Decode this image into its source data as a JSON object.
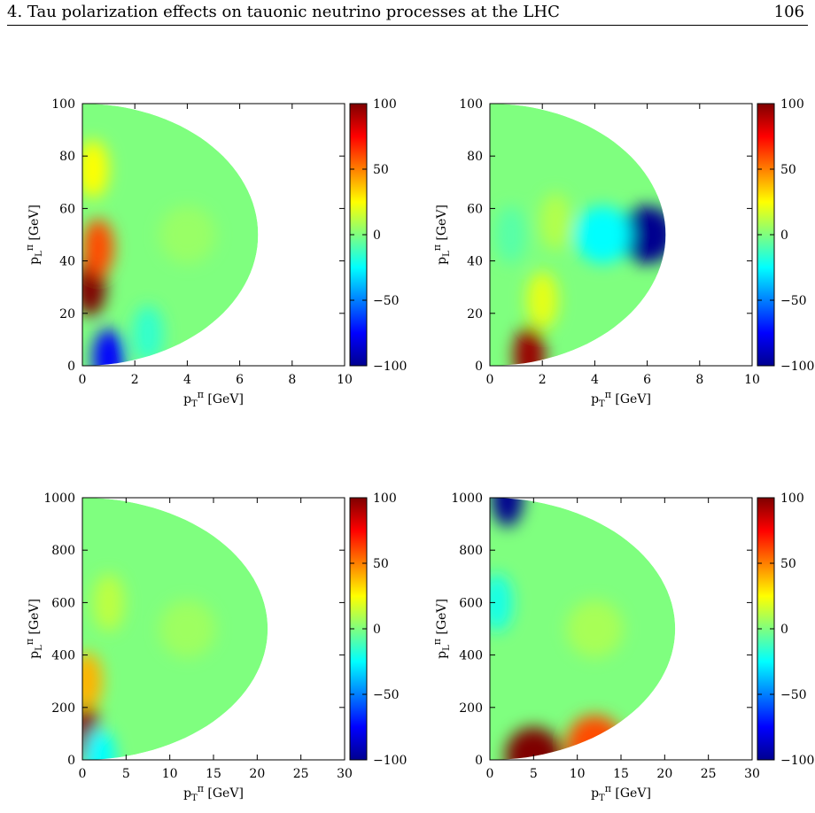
{
  "header": {
    "title": "4. Tau polarization effects on tauonic neutrino processes at the LHC",
    "page_number": "106"
  },
  "colormap": [
    "#00008f",
    "#0000ff",
    "#007fff",
    "#00ffff",
    "#7fff7f",
    "#ffff00",
    "#ff7f00",
    "#ff0000",
    "#7f0000"
  ],
  "chart_data": [
    {
      "type": "heatmap",
      "x_label_base": "p",
      "x_label_sup": "π",
      "x_label_sub": "T",
      "x_unit": "[GeV]",
      "y_label_base": "p",
      "y_label_sup": "π",
      "y_label_sub": "L",
      "y_unit": "[GeV]",
      "xlim": [
        0,
        10
      ],
      "ylim": [
        0,
        100
      ],
      "xticks": [
        0,
        2,
        4,
        6,
        8,
        10
      ],
      "yticks": [
        0,
        20,
        40,
        60,
        80,
        100
      ],
      "zlim": [
        -100,
        100
      ],
      "zticks": [
        -100,
        -50,
        0,
        50,
        100
      ],
      "colorbar_labels": [
        "100",
        "50",
        "0",
        "−50",
        "−100"
      ],
      "pT_max": 6.7,
      "regions": [
        {
          "pL": 30,
          "pT": 0.3,
          "value": 100
        },
        {
          "pL": 45,
          "pT": 0.6,
          "value": 60
        },
        {
          "pL": 75,
          "pT": 0.4,
          "value": 25
        },
        {
          "pL": 3,
          "pT": 1.0,
          "value": -75
        },
        {
          "pL": 12,
          "pT": 2.5,
          "value": -15
        },
        {
          "pL": 50,
          "pT": 4.0,
          "value": 5
        }
      ]
    },
    {
      "type": "heatmap",
      "x_label_base": "p",
      "x_label_sup": "π",
      "x_label_sub": "T",
      "x_unit": "[GeV]",
      "y_label_base": "p",
      "y_label_sup": "π",
      "y_label_sub": "L",
      "y_unit": "[GeV]",
      "xlim": [
        0,
        10
      ],
      "ylim": [
        0,
        100
      ],
      "xticks": [
        0,
        2,
        4,
        6,
        8,
        10
      ],
      "yticks": [
        0,
        20,
        40,
        60,
        80,
        100
      ],
      "zlim": [
        -100,
        100
      ],
      "zticks": [
        -100,
        -50,
        0,
        50,
        100
      ],
      "colorbar_labels": [
        "100",
        "50",
        "0",
        "−50",
        "−100"
      ],
      "pT_max": 6.7,
      "regions": [
        {
          "pL": 50,
          "pT": 6.0,
          "value": -100
        },
        {
          "pL": 50,
          "pT": 4.3,
          "value": -25
        },
        {
          "pL": 4,
          "pT": 1.5,
          "value": 95
        },
        {
          "pL": 25,
          "pT": 2.0,
          "value": 20
        },
        {
          "pL": 50,
          "pT": 0.8,
          "value": -8
        },
        {
          "pL": 55,
          "pT": 2.5,
          "value": 10
        }
      ]
    },
    {
      "type": "heatmap",
      "x_label_base": "p",
      "x_label_sup": "π",
      "x_label_sub": "T",
      "x_unit": "[GeV]",
      "y_label_base": "p",
      "y_label_sup": "π",
      "y_label_sub": "L",
      "y_unit": "[GeV]",
      "xlim": [
        0,
        30
      ],
      "ylim": [
        0,
        1000
      ],
      "xticks": [
        0,
        5,
        10,
        15,
        20,
        25,
        30
      ],
      "yticks": [
        0,
        200,
        400,
        600,
        800,
        1000
      ],
      "zlim": [
        -100,
        100
      ],
      "zticks": [
        -100,
        -50,
        0,
        50,
        100
      ],
      "colorbar_labels": [
        "100",
        "50",
        "0",
        "−50",
        "−100"
      ],
      "pT_max": 21.2,
      "regions": [
        {
          "pL": 100,
          "pT": 0.3,
          "value": 100
        },
        {
          "pL": 300,
          "pT": 0.5,
          "value": 40
        },
        {
          "pL": 10,
          "pT": 2.0,
          "value": -25
        },
        {
          "pL": 600,
          "pT": 3.0,
          "value": 12
        },
        {
          "pL": 500,
          "pT": 12.0,
          "value": 6
        }
      ]
    },
    {
      "type": "heatmap",
      "x_label_base": "p",
      "x_label_sup": "π",
      "x_label_sub": "T",
      "x_unit": "[GeV]",
      "y_label_base": "p",
      "y_label_sup": "π",
      "y_label_sub": "L",
      "y_unit": "[GeV]",
      "xlim": [
        0,
        30
      ],
      "ylim": [
        0,
        1000
      ],
      "xticks": [
        0,
        5,
        10,
        15,
        20,
        25,
        30
      ],
      "yticks": [
        0,
        200,
        400,
        600,
        800,
        1000
      ],
      "zlim": [
        -100,
        100
      ],
      "zticks": [
        -100,
        -50,
        0,
        50,
        100
      ],
      "colorbar_labels": [
        "100",
        "50",
        "0",
        "−50",
        "−100"
      ],
      "pT_max": 21.2,
      "regions": [
        {
          "pL": 1000,
          "pT": 2.0,
          "value": -100
        },
        {
          "pL": 600,
          "pT": 0.8,
          "value": -20
        },
        {
          "pL": 15,
          "pT": 5.0,
          "value": 100
        },
        {
          "pL": 60,
          "pT": 12.0,
          "value": 60
        },
        {
          "pL": 500,
          "pT": 12.0,
          "value": 8
        }
      ]
    }
  ]
}
